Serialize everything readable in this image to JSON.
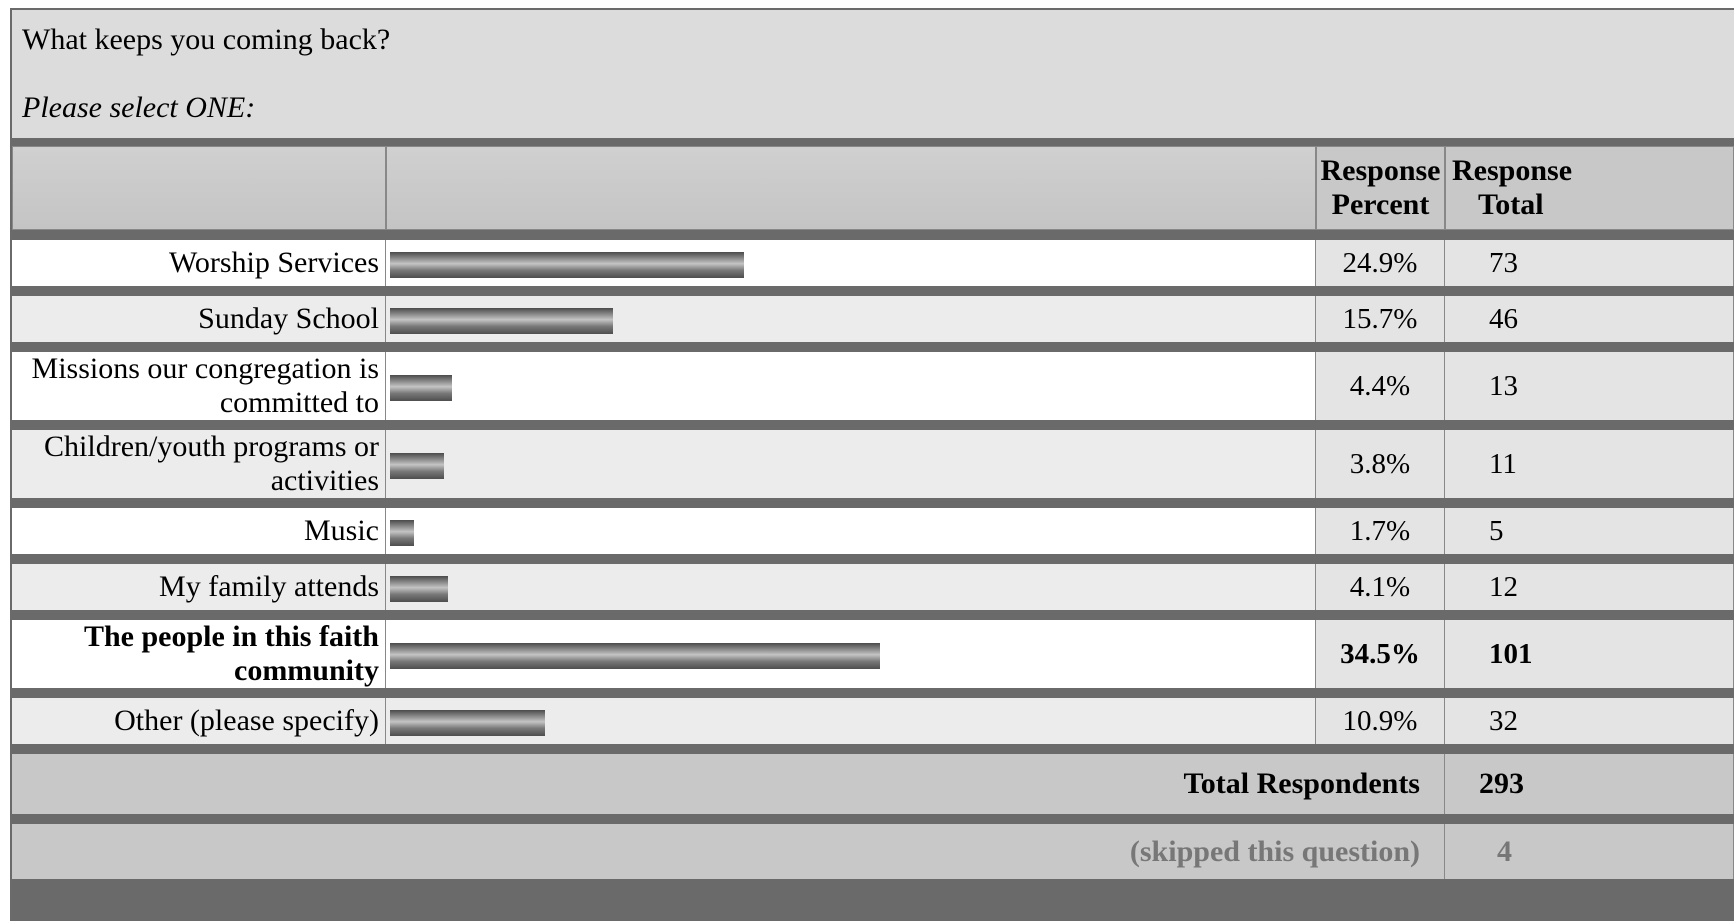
{
  "question": {
    "title": "What keeps you coming back?",
    "instruction": "Please select ONE:"
  },
  "header": {
    "percent": [
      "Response",
      "Percent"
    ],
    "total": [
      "Response",
      "Total"
    ]
  },
  "chart_data": {
    "type": "bar",
    "orientation": "horizontal",
    "categories": [
      "Worship Services",
      "Sunday School",
      "Missions our congregation is committed to",
      "Children/youth programs or activities",
      "Music",
      "My family attends",
      "The people in this faith community",
      "Other (please specify)"
    ],
    "values": [
      24.9,
      15.7,
      4.4,
      3.8,
      1.7,
      4.1,
      34.5,
      10.9
    ],
    "percent_labels": [
      "24.9%",
      "15.7%",
      "4.4%",
      "3.8%",
      "1.7%",
      "4.1%",
      "34.5%",
      "10.9%"
    ],
    "totals": [
      73,
      46,
      13,
      11,
      5,
      12,
      101,
      32
    ],
    "highlighted_index": 6,
    "xlim": [
      0,
      100
    ]
  },
  "summary": {
    "total_label": "Total Respondents",
    "total_value": "293",
    "skipped_label": "(skipped this question)",
    "skipped_value": "4"
  },
  "colors": {
    "frame": "#6a6a6a",
    "header_bg": "#c8c8c8",
    "row_alt_bg": "#ececec",
    "number_bg": "#e4e4e4",
    "bar": "#7a7a7a"
  }
}
